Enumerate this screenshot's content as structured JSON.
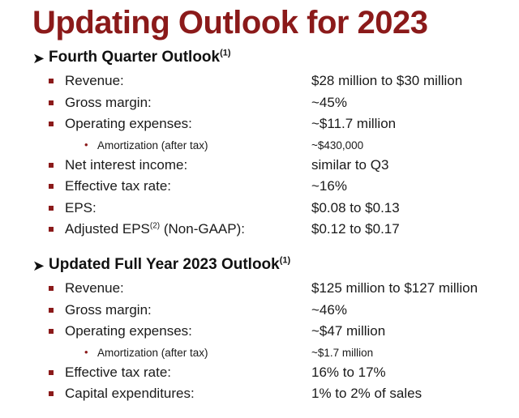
{
  "title": "Updating Outlook for 2023",
  "sections": [
    {
      "header": "Fourth Quarter Outlook",
      "header_sup": "(1)",
      "rows": [
        {
          "label": "Revenue:",
          "value": "$28 million to $30 million"
        },
        {
          "label": "Gross margin:",
          "value": "~45%"
        },
        {
          "label": "Operating expenses:",
          "value": "~$11.7 million"
        },
        {
          "label": "Amortization (after tax)",
          "value": "~$430,000",
          "sub": true
        },
        {
          "label": "Net interest income:",
          "value": "similar to Q3"
        },
        {
          "label": "Effective tax rate:",
          "value": "~16%"
        },
        {
          "label": "EPS:",
          "value": "$0.08 to $0.13"
        },
        {
          "label": "Adjusted EPS",
          "label_sup": "(2)",
          "label_suffix": " (Non-GAAP):",
          "value": "$0.12 to $0.17"
        }
      ]
    },
    {
      "header": "Updated Full Year 2023 Outlook",
      "header_sup": "(1)",
      "rows": [
        {
          "label": "Revenue:",
          "value": "$125 million to $127 million"
        },
        {
          "label": "Gross margin:",
          "value": "~46%"
        },
        {
          "label": "Operating expenses:",
          "value": "~$47 million"
        },
        {
          "label": "Amortization (after tax)",
          "value": "~$1.7 million",
          "sub": true
        },
        {
          "label": "Effective tax rate:",
          "value": "16% to 17%"
        },
        {
          "label": "Capital expenditures:",
          "value": "1% to 2% of sales"
        }
      ]
    }
  ],
  "colors": {
    "accent": "#8b1a1a",
    "text": "#1a1a1a"
  }
}
